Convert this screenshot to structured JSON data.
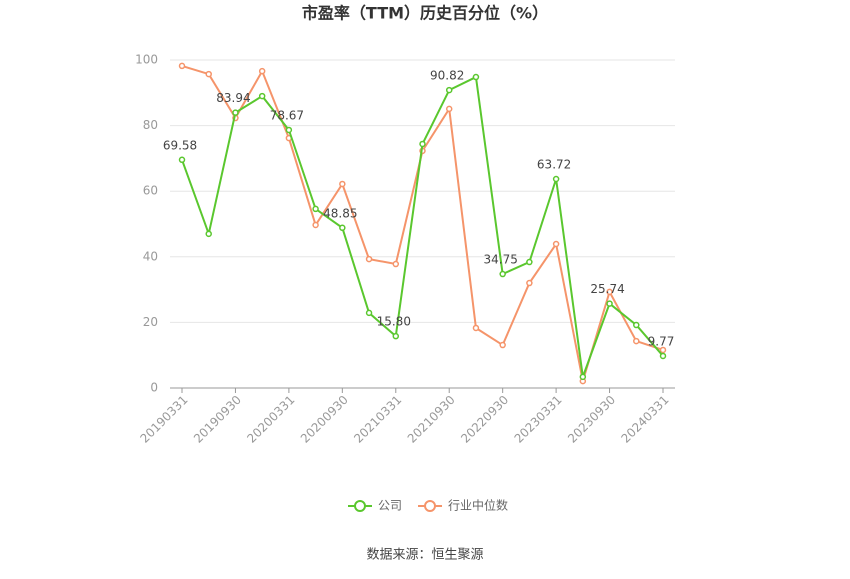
{
  "chart_data": {
    "type": "line",
    "title": "市盈率（TTM）历史百分位（%）",
    "categories": [
      "20190331",
      null,
      "20190930",
      null,
      "20200331",
      null,
      "20200930",
      null,
      "20210331",
      null,
      "20210930",
      null,
      "20220930",
      null,
      "20230331",
      null,
      "20230930",
      null,
      "20240331"
    ],
    "series": [
      {
        "name": "公司",
        "color": "#5ac72e",
        "values": [
          69.58,
          47,
          83.94,
          89,
          78.67,
          54.6,
          48.85,
          22.9,
          15.8,
          74.4,
          90.82,
          94.8,
          34.75,
          38.4,
          63.72,
          3.4,
          25.74,
          19.2,
          9.77
        ],
        "value_labels": [
          "69.58",
          null,
          "83.94",
          null,
          "78.67",
          null,
          "48.85",
          null,
          "15.80",
          null,
          "90.82",
          null,
          "34.75",
          null,
          "63.72",
          null,
          "25.74",
          null,
          "9.77"
        ]
      },
      {
        "name": "行业中位数",
        "color": "#f5946a",
        "values": [
          98.2,
          95.7,
          82.3,
          96.6,
          76.2,
          49.7,
          62.2,
          39.3,
          37.8,
          72.3,
          85.1,
          18.3,
          13.1,
          32,
          43.9,
          2.1,
          29.3,
          14.3,
          11.6
        ]
      }
    ],
    "ylim": [
      0,
      100
    ],
    "yticks": [
      0,
      20,
      40,
      60,
      80,
      100
    ],
    "grid": true,
    "legend": "bottom",
    "source": "数据来源：恒生聚源"
  }
}
